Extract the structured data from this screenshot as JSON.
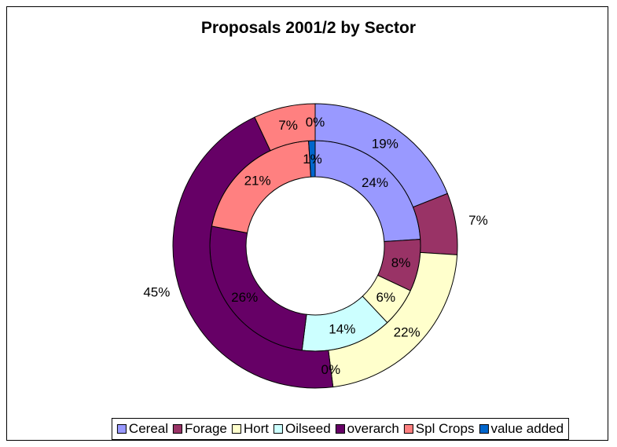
{
  "chart_data": {
    "type": "doughnut",
    "title": "Proposals 2001/2 by Sector",
    "categories": [
      "Cereal",
      "Forage",
      "Hort",
      "Oilseed",
      "overarch",
      "Spl Crops",
      "value  added"
    ],
    "colors": [
      "#9999ff",
      "#993366",
      "#ffffcc",
      "#ccffff",
      "#660066",
      "#ff8080",
      "#0066cc"
    ],
    "series": [
      {
        "ring": "inner",
        "values": [
          24,
          8,
          6,
          14,
          26,
          21,
          1
        ],
        "labels": [
          "24%",
          "8%",
          "6%",
          "14%",
          "26%",
          "21%",
          "1%"
        ]
      },
      {
        "ring": "outer",
        "values": [
          19,
          7,
          22,
          0,
          45,
          7,
          0
        ],
        "labels": [
          "19%",
          "7%",
          "22%",
          "0%",
          "45%",
          "7%",
          "0%"
        ]
      }
    ],
    "legend_position": "bottom"
  }
}
